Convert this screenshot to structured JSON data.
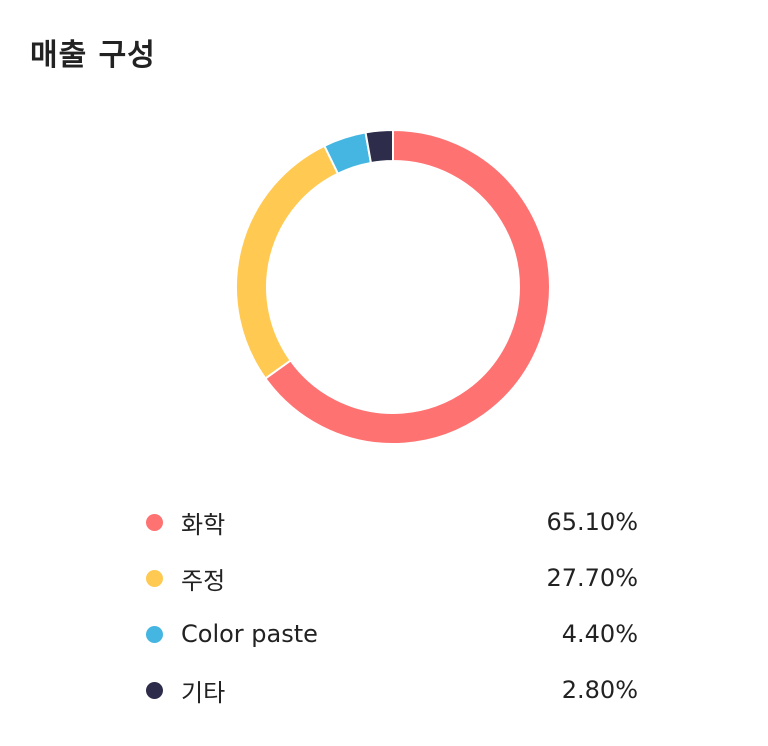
{
  "title": "매출 구성",
  "chart_data": {
    "type": "pie",
    "variant": "donut",
    "title": "매출 구성",
    "categories": [
      "화학",
      "주정",
      "Color paste",
      "기타"
    ],
    "values": [
      65.1,
      27.7,
      4.4,
      2.8
    ],
    "value_labels": [
      "65.10%",
      "27.70%",
      "4.40%",
      "2.80%"
    ],
    "colors": [
      "#FF7272",
      "#FFC952",
      "#45B6E1",
      "#2D2D4B"
    ],
    "start": "top",
    "direction": "clockwise",
    "legend": "bottom"
  }
}
